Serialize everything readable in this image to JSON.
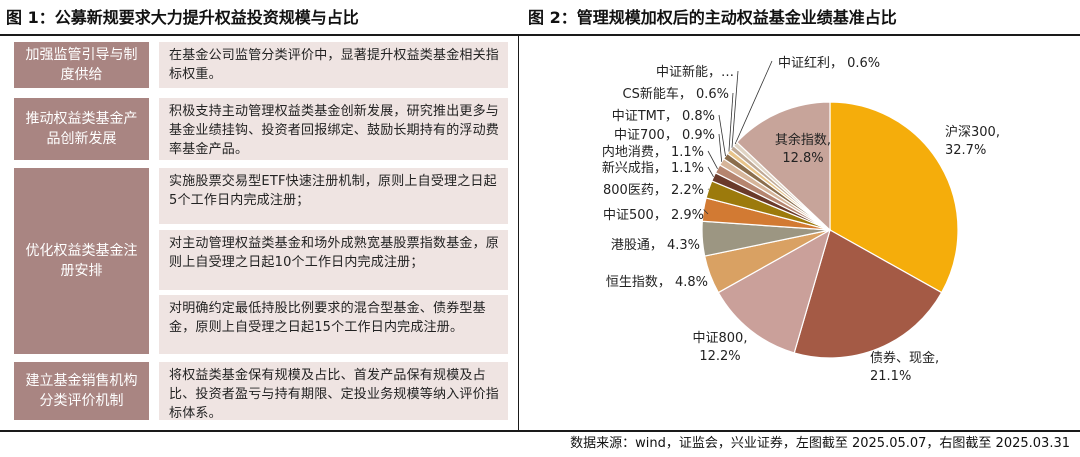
{
  "figure1": {
    "title": "图 1：公募新规要求大力提升权益投资规模与占比",
    "rows": [
      {
        "label": "加强监管引导与制度供给",
        "items": [
          "在基金公司监管分类评价中，显著提升权益类基金相关指标权重。"
        ]
      },
      {
        "label": "推动权益类基金产品创新发展",
        "items": [
          "积极支持主动管理权益类基金创新发展，研究推出更多与基金业绩挂钩、投资者回报绑定、鼓励长期持有的浮动费率基金产品。"
        ]
      },
      {
        "label": "优化权益类基金注册安排",
        "items": [
          "实施股票交易型ETF快速注册机制，原则上自受理之日起5个工作日内完成注册；",
          "对主动管理权益类基金和场外成熟宽基股票指数基金，原则上自受理之日起10个工作日内完成注册；",
          "对明确约定最低持股比例要求的混合型基金、债券型基金，原则上自受理之日起15个工作日内完成注册。"
        ]
      },
      {
        "label": "建立基金销售机构分类评价机制",
        "items": [
          "将权益类基金保有规模及占比、首发产品保有规模及占比、投资者盈亏与持有期限、定投业务规模等纳入评价指标体系。"
        ]
      }
    ]
  },
  "figure2": {
    "title": "图 2：管理规模加权后的主动权益基金业绩基准占比"
  },
  "chart_data": {
    "type": "pie",
    "title": "图 2：管理规模加权后的主动权益基金业绩基准占比",
    "unit": "%",
    "slices": [
      {
        "name": "沪深300",
        "value": 32.7,
        "label": "32.7%",
        "color": "#f5ad0b"
      },
      {
        "name": "债券、现金",
        "value": 21.1,
        "label": "21.1%",
        "color": "#a45a45"
      },
      {
        "name": "中证800",
        "value": 12.2,
        "label": "12.2%",
        "color": "#caa09a"
      },
      {
        "name": "恒生指数",
        "value": 4.8,
        "label": "4.8%",
        "color": "#d9a163"
      },
      {
        "name": "港股通",
        "value": 4.3,
        "label": "4.3%",
        "color": "#9c9682"
      },
      {
        "name": "中证500",
        "value": 2.9,
        "label": "2.9%",
        "color": "#d27a33"
      },
      {
        "name": "800医药",
        "value": 2.2,
        "label": "2.2%",
        "color": "#9c7a0c"
      },
      {
        "name": "新兴成指",
        "value": 1.1,
        "label": "1.1%",
        "color": "#6a3a2a"
      },
      {
        "name": "内地消费",
        "value": 1.1,
        "label": "1.1%",
        "color": "#b5856f"
      },
      {
        "name": "中证700",
        "value": 0.9,
        "label": "0.9%",
        "color": "#d6b59a"
      },
      {
        "name": "中证TMT",
        "value": 0.8,
        "label": "0.8%",
        "color": "#8a6d4c"
      },
      {
        "name": "CS新能车",
        "value": 0.6,
        "label": "0.6%",
        "color": "#e8c48a"
      },
      {
        "name": "中证新能，…",
        "value": 0.6,
        "label": "",
        "color": "#bfa996"
      },
      {
        "name": "中证红利",
        "value": 0.6,
        "label": "0.6%",
        "color": "#e0d4c4"
      },
      {
        "name": "其余指数",
        "value": 12.8,
        "label": "12.8%",
        "color": "#c7a49a"
      }
    ],
    "legend": "none"
  },
  "source": "数据来源：wind，证监会，兴业证券，左图截至 2025.05.07，右图截至 2025.03.31"
}
